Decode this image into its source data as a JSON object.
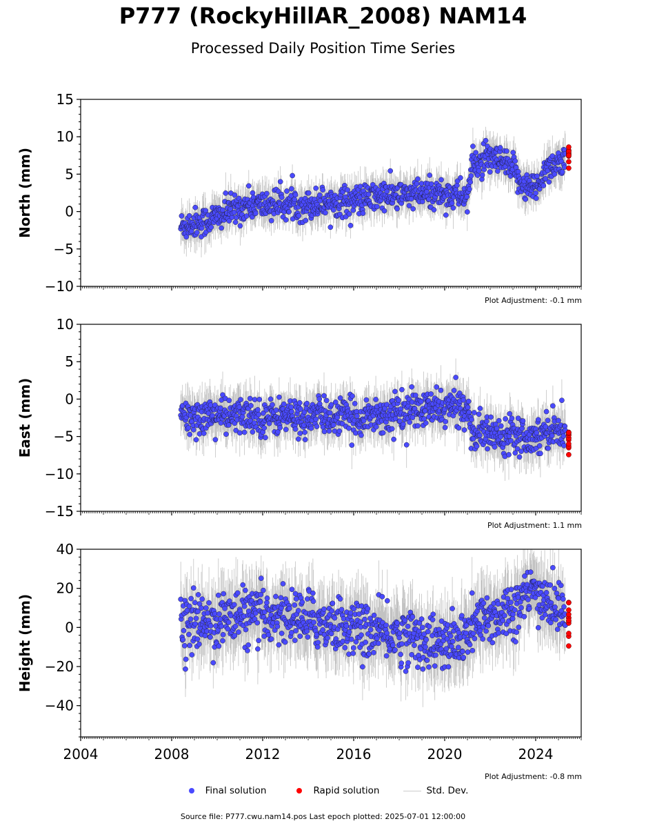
{
  "title": "P777 (RockyHillAR_2008) NAM14",
  "subtitle": "Processed Daily Position Time Series",
  "source_line": "Source file: P777.cwu.nam14.pos  Last epoch plotted: 2025-07-01 12:00:00",
  "colors": {
    "final": "#4a4aff",
    "rapid": "#ff0000",
    "stddev": "#cccccc"
  },
  "chart_data": [
    {
      "type": "scatter",
      "ylabel": "North (mm)",
      "ylim": [
        -10,
        15
      ],
      "yticks": [
        15,
        10,
        5,
        0,
        -5,
        -10
      ],
      "xlim": [
        2004,
        2026
      ],
      "xticks": [
        2004,
        2008,
        2012,
        2016,
        2020,
        2024
      ],
      "show_xtick_labels": false,
      "adjustment": "Plot Adjustment: -0.1 mm",
      "series": [
        {
          "name": "Final solution",
          "x": [
            2008.4,
            2009.0,
            2009.5,
            2010.0,
            2010.5,
            2011.0,
            2011.5,
            2012.0,
            2012.5,
            2013.0,
            2013.5,
            2014.0,
            2014.5,
            2015.0,
            2015.5,
            2016.0,
            2016.5,
            2017.0,
            2017.5,
            2018.0,
            2018.5,
            2019.0,
            2019.5,
            2020.0,
            2020.5,
            2021.0,
            2021.2,
            2021.5,
            2022.0,
            2022.5,
            2023.0,
            2023.5,
            2024.0,
            2024.5,
            2025.0,
            2025.3
          ],
          "y": [
            -2.0,
            -1.5,
            -1.3,
            -0.7,
            0.0,
            0.5,
            1.0,
            0.8,
            1.0,
            1.0,
            1.0,
            0.8,
            1.2,
            1.3,
            1.4,
            1.5,
            1.6,
            2.0,
            2.2,
            2.0,
            2.3,
            2.2,
            2.5,
            2.4,
            2.2,
            2.0,
            6.0,
            6.5,
            7.0,
            6.5,
            5.5,
            3.5,
            3.0,
            6.0,
            6.5,
            6.5
          ]
        },
        {
          "name": "Rapid solution",
          "x": [
            2025.45
          ],
          "y": [
            7.5
          ]
        }
      ]
    },
    {
      "type": "scatter",
      "ylabel": "East (mm)",
      "ylim": [
        -15,
        10
      ],
      "yticks": [
        10,
        5,
        0,
        -5,
        -10,
        -15
      ],
      "xlim": [
        2004,
        2026
      ],
      "xticks": [
        2004,
        2008,
        2012,
        2016,
        2020,
        2024
      ],
      "show_xtick_labels": false,
      "adjustment": "Plot Adjustment: 1.1 mm",
      "series": [
        {
          "name": "Final solution",
          "x": [
            2008.4,
            2009.0,
            2009.5,
            2010.0,
            2010.5,
            2011.0,
            2011.5,
            2012.0,
            2012.5,
            2013.0,
            2013.5,
            2014.0,
            2014.5,
            2015.0,
            2015.5,
            2016.0,
            2016.5,
            2017.0,
            2017.5,
            2018.0,
            2018.5,
            2019.0,
            2019.5,
            2020.0,
            2020.5,
            2021.0,
            2021.2,
            2021.5,
            2022.0,
            2022.5,
            2023.0,
            2023.5,
            2024.0,
            2024.5,
            2025.0,
            2025.3
          ],
          "y": [
            -2.5,
            -2.5,
            -2.2,
            -2.0,
            -2.5,
            -2.3,
            -2.0,
            -2.5,
            -2.4,
            -2.2,
            -2.5,
            -2.5,
            -2.0,
            -2.5,
            -2.3,
            -2.6,
            -2.3,
            -2.0,
            -2.2,
            -1.8,
            -1.5,
            -1.5,
            -1.3,
            -1.2,
            -1.0,
            -1.0,
            -4.5,
            -4.5,
            -4.5,
            -5.0,
            -4.0,
            -5.0,
            -5.0,
            -4.0,
            -4.0,
            -4.5
          ]
        },
        {
          "name": "Rapid solution",
          "x": [
            2025.45
          ],
          "y": [
            -5.0
          ]
        }
      ]
    },
    {
      "type": "scatter",
      "ylabel": "Height (mm)",
      "ylim": [
        -56,
        40
      ],
      "yticks": [
        40,
        20,
        0,
        -20,
        -40
      ],
      "xlim": [
        2004,
        2026
      ],
      "xticks": [
        2004,
        2008,
        2012,
        2016,
        2020,
        2024
      ],
      "show_xtick_labels": true,
      "adjustment": "Plot Adjustment: -0.8 mm",
      "series": [
        {
          "name": "Final solution",
          "x": [
            2008.4,
            2009.0,
            2009.5,
            2010.0,
            2010.5,
            2011.0,
            2011.5,
            2012.0,
            2012.5,
            2013.0,
            2013.5,
            2014.0,
            2014.5,
            2015.0,
            2015.5,
            2016.0,
            2016.5,
            2017.0,
            2017.5,
            2018.0,
            2018.5,
            2019.0,
            2019.5,
            2020.0,
            2020.5,
            2021.0,
            2021.2,
            2021.5,
            2022.0,
            2022.5,
            2023.0,
            2023.5,
            2024.0,
            2024.5,
            2025.0,
            2025.3
          ],
          "y": [
            0,
            2,
            3,
            3,
            5,
            6,
            6,
            5,
            7,
            6,
            5,
            4,
            3,
            2,
            1,
            0,
            -2,
            -3,
            -4,
            -4,
            -5,
            -6,
            -8,
            -9,
            -8,
            -5,
            0,
            2,
            5,
            8,
            10,
            15,
            18,
            13,
            10,
            6
          ]
        },
        {
          "name": "Rapid solution",
          "x": [
            2025.45
          ],
          "y": [
            3
          ]
        }
      ]
    }
  ],
  "legend": [
    {
      "key": "final",
      "label": "Final solution"
    },
    {
      "key": "rapid",
      "label": "Rapid solution"
    },
    {
      "key": "stddev",
      "label": "Std. Dev."
    }
  ]
}
